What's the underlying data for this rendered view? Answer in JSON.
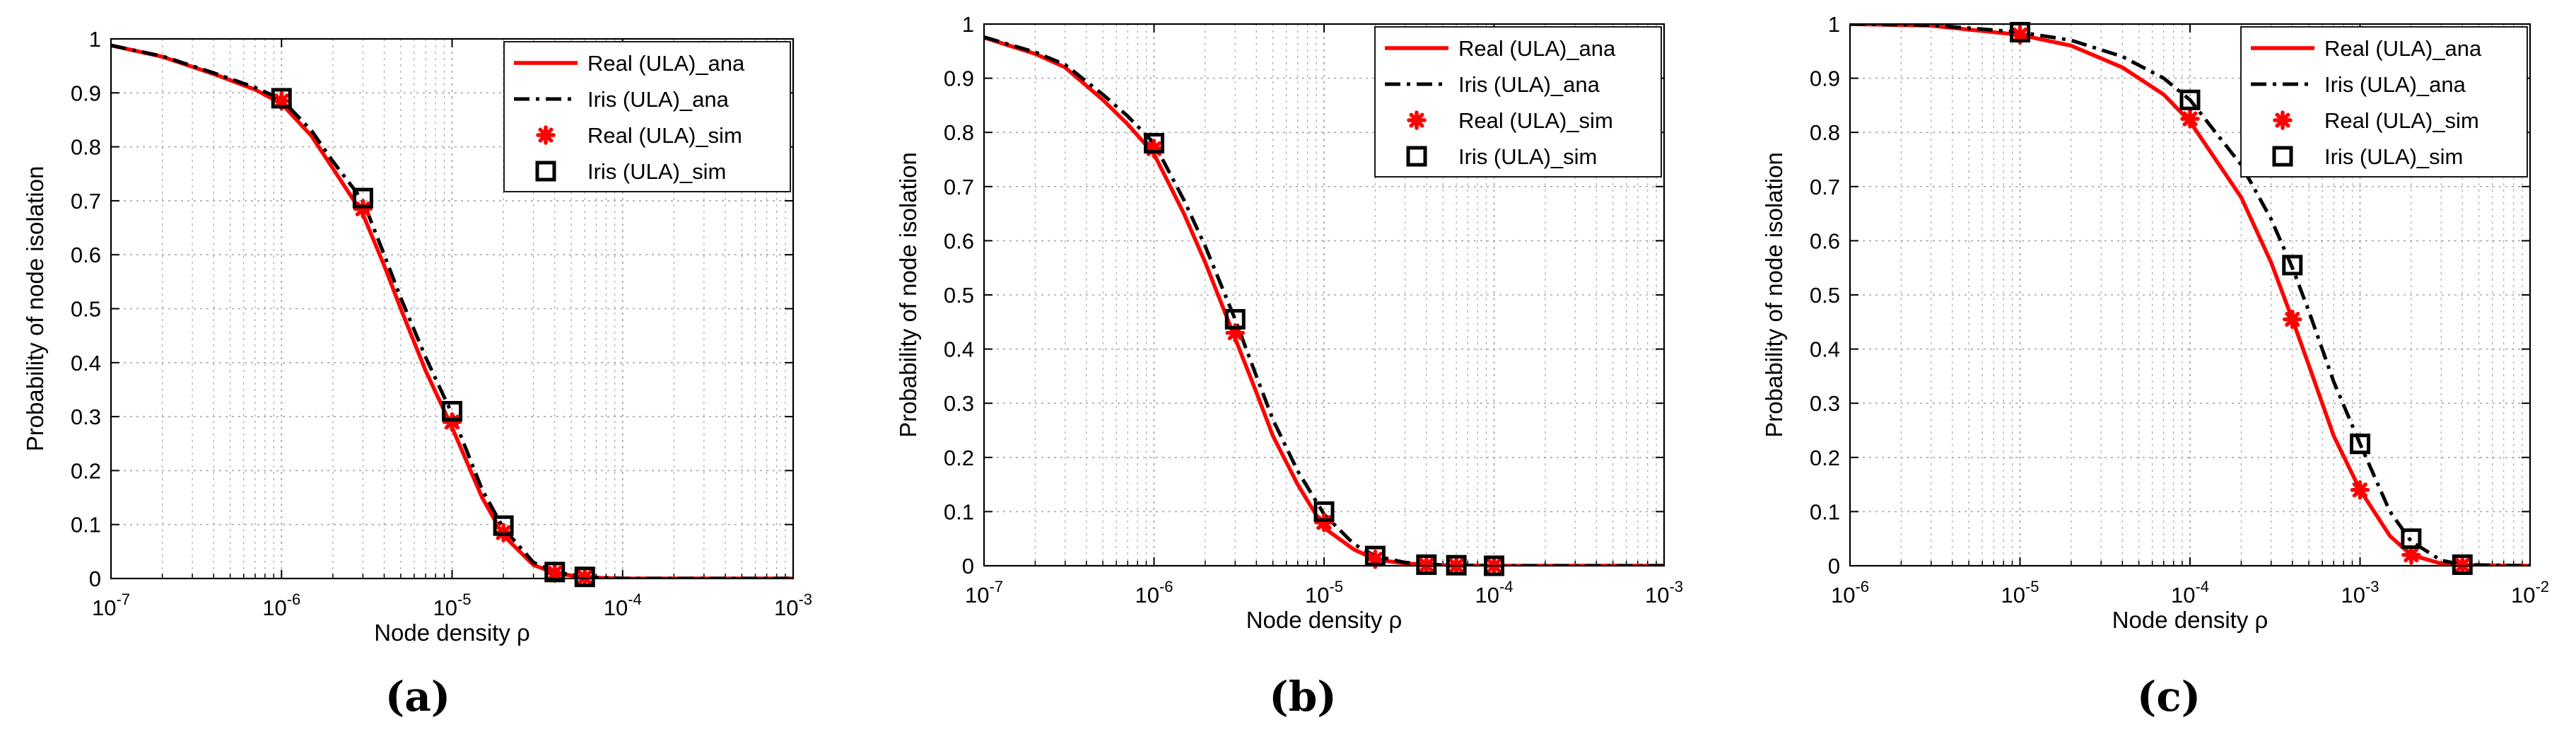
{
  "figure": {
    "subplot_labels": [
      "(a)",
      "(b)",
      "(c)"
    ]
  },
  "style": {
    "real_color": "#ff0000",
    "iris_color": "#000000",
    "grid_color": "#a6a6a6",
    "axes_color": "#000000",
    "background": "#ffffff"
  },
  "chart_data": [
    {
      "type": "line",
      "title": "",
      "label": "(a)",
      "xlabel": "Node density ρ",
      "ylabel": "Probability of node isolation",
      "xscale": "log",
      "xlim": [
        1e-07,
        0.001
      ],
      "ylim": [
        0,
        1
      ],
      "x_ticks": [
        {
          "v": 1e-07,
          "base": "10",
          "exp": "-7"
        },
        {
          "v": 1e-06,
          "base": "10",
          "exp": "-6"
        },
        {
          "v": 1e-05,
          "base": "10",
          "exp": "-5"
        },
        {
          "v": 0.0001,
          "base": "10",
          "exp": "-4"
        },
        {
          "v": 0.001,
          "base": "10",
          "exp": "-3"
        }
      ],
      "y_ticks": [
        "0",
        "0.1",
        "0.2",
        "0.3",
        "0.4",
        "0.5",
        "0.6",
        "0.7",
        "0.8",
        "0.9",
        "1"
      ],
      "grid": true,
      "legend_position": "top-right",
      "series": [
        {
          "name": "Real (ULA)_ana",
          "kind": "line",
          "style": "solid",
          "color": "#ff0000",
          "x": [
            1e-07,
            2e-07,
            4e-07,
            7e-07,
            1e-06,
            1.5e-06,
            2e-06,
            3e-06,
            4e-06,
            5e-06,
            7e-06,
            1e-05,
            1.5e-05,
            2e-05,
            3e-05,
            4e-05,
            6e-05,
            0.0001,
            0.0003,
            0.001
          ],
          "y": [
            0.988,
            0.967,
            0.935,
            0.906,
            0.88,
            0.82,
            0.76,
            0.675,
            0.58,
            0.5,
            0.385,
            0.28,
            0.15,
            0.08,
            0.025,
            0.01,
            0.002,
            0.0,
            0.0,
            0.0
          ]
        },
        {
          "name": "Iris (ULA)_ana",
          "kind": "line",
          "style": "dashdot",
          "color": "#000000",
          "x": [
            1e-07,
            2e-07,
            4e-07,
            7e-07,
            1e-06,
            1.5e-06,
            2e-06,
            3e-06,
            4e-06,
            5e-06,
            7e-06,
            1e-05,
            1.5e-05,
            2e-05,
            3e-05,
            4e-05,
            6e-05,
            0.0001,
            0.0003,
            0.001
          ],
          "y": [
            0.988,
            0.968,
            0.937,
            0.91,
            0.888,
            0.83,
            0.773,
            0.7,
            0.6,
            0.52,
            0.41,
            0.305,
            0.165,
            0.093,
            0.03,
            0.012,
            0.003,
            0.0,
            0.0,
            0.0
          ]
        },
        {
          "name": "Real (ULA)_sim",
          "kind": "marker",
          "marker": "asterisk",
          "color": "#ff0000",
          "x": [
            1e-06,
            3e-06,
            1e-05,
            2e-05,
            4e-05,
            6e-05
          ],
          "y": [
            0.885,
            0.685,
            0.29,
            0.085,
            0.01,
            0.002
          ]
        },
        {
          "name": "Iris (ULA)_sim",
          "kind": "marker",
          "marker": "square",
          "color": "#000000",
          "x": [
            1e-06,
            3e-06,
            1e-05,
            2e-05,
            4e-05,
            6e-05
          ],
          "y": [
            0.89,
            0.705,
            0.31,
            0.098,
            0.012,
            0.003
          ]
        }
      ]
    },
    {
      "type": "line",
      "title": "",
      "label": "(b)",
      "xlabel": "Node density ρ",
      "ylabel": "Probability of node isolation",
      "xscale": "log",
      "xlim": [
        1e-07,
        0.001
      ],
      "ylim": [
        0,
        1
      ],
      "x_ticks": [
        {
          "v": 1e-07,
          "base": "10",
          "exp": "-7"
        },
        {
          "v": 1e-06,
          "base": "10",
          "exp": "-6"
        },
        {
          "v": 1e-05,
          "base": "10",
          "exp": "-5"
        },
        {
          "v": 0.0001,
          "base": "10",
          "exp": "-4"
        },
        {
          "v": 0.001,
          "base": "10",
          "exp": "-3"
        }
      ],
      "y_ticks": [
        "0",
        "0.1",
        "0.2",
        "0.3",
        "0.4",
        "0.5",
        "0.6",
        "0.7",
        "0.8",
        "0.9",
        "1"
      ],
      "grid": true,
      "legend_position": "top-right",
      "series": [
        {
          "name": "Real (ULA)_ana",
          "kind": "line",
          "style": "solid",
          "color": "#ff0000",
          "x": [
            1e-07,
            2e-07,
            3e-07,
            5e-07,
            7e-07,
            1e-06,
            1.5e-06,
            2e-06,
            3e-06,
            4e-06,
            5e-06,
            7e-06,
            1e-05,
            1.5e-05,
            2e-05,
            3e-05,
            5e-05,
            0.0001,
            0.001
          ],
          "y": [
            0.975,
            0.945,
            0.92,
            0.86,
            0.815,
            0.76,
            0.65,
            0.56,
            0.42,
            0.32,
            0.24,
            0.15,
            0.07,
            0.03,
            0.012,
            0.004,
            0.001,
            0.0,
            0.0
          ]
        },
        {
          "name": "Iris (ULA)_ana",
          "kind": "line",
          "style": "dashdot",
          "color": "#000000",
          "x": [
            1e-07,
            2e-07,
            3e-07,
            5e-07,
            7e-07,
            1e-06,
            1.5e-06,
            2e-06,
            3e-06,
            4e-06,
            5e-06,
            7e-06,
            1e-05,
            1.5e-05,
            2e-05,
            3e-05,
            5e-05,
            0.0001,
            0.001
          ],
          "y": [
            0.976,
            0.948,
            0.925,
            0.87,
            0.83,
            0.78,
            0.675,
            0.59,
            0.455,
            0.35,
            0.27,
            0.175,
            0.095,
            0.04,
            0.018,
            0.006,
            0.001,
            0.0,
            0.0
          ]
        },
        {
          "name": "Real (ULA)_sim",
          "kind": "marker",
          "marker": "asterisk",
          "color": "#ff0000",
          "x": [
            1e-06,
            3e-06,
            1e-05,
            2e-05,
            4e-05,
            6e-05,
            0.0001
          ],
          "y": [
            0.77,
            0.43,
            0.08,
            0.012,
            0.001,
            0.0,
            0.0
          ]
        },
        {
          "name": "Iris (ULA)_sim",
          "kind": "marker",
          "marker": "square",
          "color": "#000000",
          "x": [
            1e-06,
            3e-06,
            1e-05,
            2e-05,
            4e-05,
            6e-05,
            0.0001
          ],
          "y": [
            0.78,
            0.455,
            0.1,
            0.018,
            0.002,
            0.001,
            0.0
          ]
        }
      ]
    },
    {
      "type": "line",
      "title": "",
      "label": "(c)",
      "xlabel": "Node density ρ",
      "ylabel": "Probability of node isolation",
      "xscale": "log",
      "xlim": [
        1e-06,
        0.01
      ],
      "ylim": [
        0,
        1
      ],
      "x_ticks": [
        {
          "v": 1e-06,
          "base": "10",
          "exp": "-6"
        },
        {
          "v": 1e-05,
          "base": "10",
          "exp": "-5"
        },
        {
          "v": 0.0001,
          "base": "10",
          "exp": "-4"
        },
        {
          "v": 0.001,
          "base": "10",
          "exp": "-3"
        },
        {
          "v": 0.01,
          "base": "10",
          "exp": "-2"
        }
      ],
      "y_ticks": [
        "0",
        "0.1",
        "0.2",
        "0.3",
        "0.4",
        "0.5",
        "0.6",
        "0.7",
        "0.8",
        "0.9",
        "1"
      ],
      "grid": true,
      "legend_position": "top-right",
      "series": [
        {
          "name": "Real (ULA)_ana",
          "kind": "line",
          "style": "solid",
          "color": "#ff0000",
          "x": [
            1e-06,
            3e-06,
            1e-05,
            2e-05,
            4e-05,
            7e-05,
            0.0001,
            0.0002,
            0.0003,
            0.0004,
            0.0005,
            0.0007,
            0.001,
            0.0015,
            0.002,
            0.003,
            0.004,
            0.01
          ],
          "y": [
            1.0,
            0.997,
            0.98,
            0.96,
            0.92,
            0.87,
            0.82,
            0.68,
            0.56,
            0.455,
            0.37,
            0.24,
            0.14,
            0.055,
            0.02,
            0.004,
            0.001,
            0.0
          ]
        },
        {
          "name": "Iris (ULA)_ana",
          "kind": "line",
          "style": "dashdot",
          "color": "#000000",
          "x": [
            1e-06,
            3e-06,
            1e-05,
            2e-05,
            4e-05,
            7e-05,
            0.0001,
            0.0002,
            0.0003,
            0.0004,
            0.0005,
            0.0007,
            0.001,
            0.0015,
            0.002,
            0.003,
            0.004,
            0.01
          ],
          "y": [
            1.0,
            0.998,
            0.985,
            0.97,
            0.94,
            0.9,
            0.86,
            0.74,
            0.64,
            0.55,
            0.47,
            0.34,
            0.225,
            0.1,
            0.045,
            0.01,
            0.002,
            0.0
          ]
        },
        {
          "name": "Real (ULA)_sim",
          "kind": "marker",
          "marker": "asterisk",
          "color": "#ff0000",
          "x": [
            1e-05,
            0.0001,
            0.0004,
            0.001,
            0.002,
            0.004
          ],
          "y": [
            0.98,
            0.825,
            0.455,
            0.14,
            0.02,
            0.001
          ]
        },
        {
          "name": "Iris (ULA)_sim",
          "kind": "marker",
          "marker": "square",
          "color": "#000000",
          "x": [
            1e-05,
            0.0001,
            0.0004,
            0.001,
            0.002,
            0.004
          ],
          "y": [
            0.985,
            0.86,
            0.555,
            0.225,
            0.05,
            0.002
          ]
        }
      ]
    }
  ]
}
